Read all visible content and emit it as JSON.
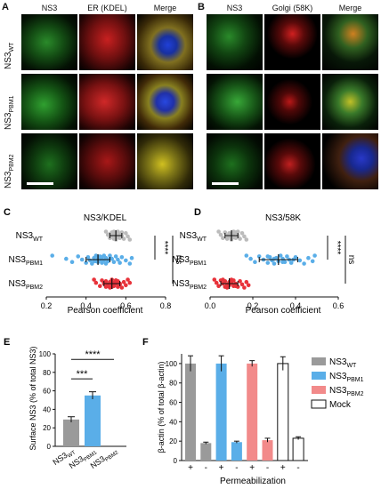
{
  "panelA": {
    "label": "A",
    "columns": [
      "NS3",
      "ER (KDEL)",
      "Merge"
    ],
    "rows": [
      {
        "base": "NS3",
        "sub": "WT"
      },
      {
        "base": "NS3",
        "sub": "PBM1"
      },
      {
        "base": "NS3",
        "sub": "PBM2"
      }
    ]
  },
  "panelB": {
    "label": "B",
    "columns": [
      "NS3",
      "Golgi (58K)",
      "Merge"
    ]
  },
  "chart_data": [
    {
      "panel": "C",
      "type": "scatter",
      "title": "NS3/KDEL",
      "xlabel": "Pearson coefficient",
      "xlim": [
        0.2,
        0.8
      ],
      "xticks": [
        "0.2",
        "0.4",
        "0.6",
        "0.8"
      ],
      "categories": [
        {
          "base": "NS3",
          "sub": "WT"
        },
        {
          "base": "NS3",
          "sub": "PBM1"
        },
        {
          "base": "NS3",
          "sub": "PBM2"
        }
      ],
      "series": [
        {
          "color": "#bbbbbb",
          "mean": 0.55,
          "sd": 0.03,
          "points": [
            0.5,
            0.51,
            0.52,
            0.53,
            0.53,
            0.54,
            0.54,
            0.55,
            0.55,
            0.55,
            0.56,
            0.56,
            0.57,
            0.57,
            0.58,
            0.58,
            0.59,
            0.6,
            0.61,
            0.62,
            0.52,
            0.56,
            0.54,
            0.57,
            0.55
          ]
        },
        {
          "color": "#5aaee8",
          "mean": 0.46,
          "sd": 0.06,
          "points": [
            0.23,
            0.3,
            0.33,
            0.36,
            0.38,
            0.4,
            0.41,
            0.42,
            0.43,
            0.44,
            0.45,
            0.45,
            0.46,
            0.46,
            0.47,
            0.47,
            0.48,
            0.48,
            0.49,
            0.5,
            0.5,
            0.51,
            0.52,
            0.53,
            0.54,
            0.55,
            0.56,
            0.57,
            0.58,
            0.6,
            0.62,
            0.63,
            0.44,
            0.49,
            0.52
          ]
        },
        {
          "color": "#e8323a",
          "mean": 0.53,
          "sd": 0.04,
          "points": [
            0.44,
            0.45,
            0.47,
            0.48,
            0.49,
            0.5,
            0.5,
            0.51,
            0.52,
            0.52,
            0.53,
            0.53,
            0.54,
            0.54,
            0.55,
            0.55,
            0.56,
            0.56,
            0.57,
            0.58,
            0.59,
            0.6,
            0.61,
            0.62,
            0.51,
            0.55,
            0.57,
            0.53
          ]
        }
      ],
      "annotations": [
        "****",
        "ns"
      ]
    },
    {
      "panel": "D",
      "type": "scatter",
      "title": "NS3/58K",
      "xlabel": "Pearson coefficient",
      "xlim": [
        0.0,
        0.6
      ],
      "xticks": [
        "0.0",
        "0.2",
        "0.4",
        "0.6"
      ],
      "categories": [
        {
          "base": "NS3",
          "sub": "WT"
        },
        {
          "base": "NS3",
          "sub": "PBM1"
        },
        {
          "base": "NS3",
          "sub": "PBM2"
        }
      ],
      "series": [
        {
          "color": "#bbbbbb",
          "mean": 0.1,
          "sd": 0.03,
          "points": [
            0.04,
            0.05,
            0.06,
            0.07,
            0.08,
            0.08,
            0.09,
            0.09,
            0.1,
            0.1,
            0.1,
            0.11,
            0.11,
            0.12,
            0.12,
            0.13,
            0.14,
            0.15,
            0.16,
            0.17,
            0.09,
            0.11,
            0.13
          ]
        },
        {
          "color": "#5aaee8",
          "mean": 0.32,
          "sd": 0.09,
          "points": [
            0.17,
            0.19,
            0.21,
            0.23,
            0.25,
            0.27,
            0.28,
            0.29,
            0.3,
            0.31,
            0.32,
            0.33,
            0.34,
            0.35,
            0.36,
            0.37,
            0.38,
            0.4,
            0.42,
            0.44,
            0.46,
            0.48,
            0.49,
            0.3,
            0.34,
            0.27,
            0.39
          ]
        },
        {
          "color": "#e8323a",
          "mean": 0.09,
          "sd": 0.04,
          "points": [
            0.02,
            0.03,
            0.04,
            0.05,
            0.06,
            0.07,
            0.07,
            0.08,
            0.08,
            0.09,
            0.09,
            0.1,
            0.1,
            0.11,
            0.11,
            0.12,
            0.13,
            0.14,
            0.15,
            0.16,
            0.17,
            0.18,
            0.06,
            0.1,
            0.12
          ]
        }
      ],
      "annotations": [
        "****",
        "ns"
      ]
    },
    {
      "panel": "E",
      "type": "bar",
      "ylabel": "Surface NS3 (% of total NS3)",
      "ylim": [
        0,
        100
      ],
      "yticks": [
        "0",
        "20",
        "40",
        "60",
        "80",
        "100"
      ],
      "categories": [
        {
          "base": "NS3",
          "sub": "WT"
        },
        {
          "base": "NS3",
          "sub": "PBM1"
        },
        {
          "base": "NS3",
          "sub": "PBM2"
        }
      ],
      "values": [
        29,
        55,
        0
      ],
      "errors": [
        3,
        4,
        0
      ],
      "colors": [
        "#9a9a9a",
        "#5aaee8",
        "#e8323a"
      ],
      "annotations": [
        "***",
        "****"
      ]
    },
    {
      "panel": "F",
      "type": "bar",
      "ylabel": "β-actin (% of total β-actin)",
      "xlabel": "Permeabilization",
      "ylim": [
        0,
        100
      ],
      "yticks": [
        "0",
        "20",
        "40",
        "60",
        "80",
        "100"
      ],
      "categories": [
        "+",
        "-",
        "+",
        "-",
        "+",
        "-",
        "+",
        "-"
      ],
      "values": [
        100,
        18,
        100,
        19,
        100,
        21,
        100,
        23
      ],
      "errors": [
        8,
        1,
        8,
        1,
        3,
        2,
        7,
        1.5
      ],
      "colors": [
        "#9a9a9a",
        "#9a9a9a",
        "#5aaee8",
        "#5aaee8",
        "#f28a8a",
        "#f28a8a",
        "#ffffff",
        "#ffffff"
      ],
      "legend": [
        {
          "base": "NS3",
          "sub": "WT",
          "color": "#9a9a9a"
        },
        {
          "base": "NS3",
          "sub": "PBM1",
          "color": "#5aaee8"
        },
        {
          "base": "NS3",
          "sub": "PBM2",
          "color": "#f28a8a"
        },
        {
          "base": "Mock",
          "sub": "",
          "color": "#ffffff"
        }
      ]
    }
  ],
  "labels": {
    "C": "C",
    "D": "D",
    "E": "E",
    "F": "F"
  }
}
